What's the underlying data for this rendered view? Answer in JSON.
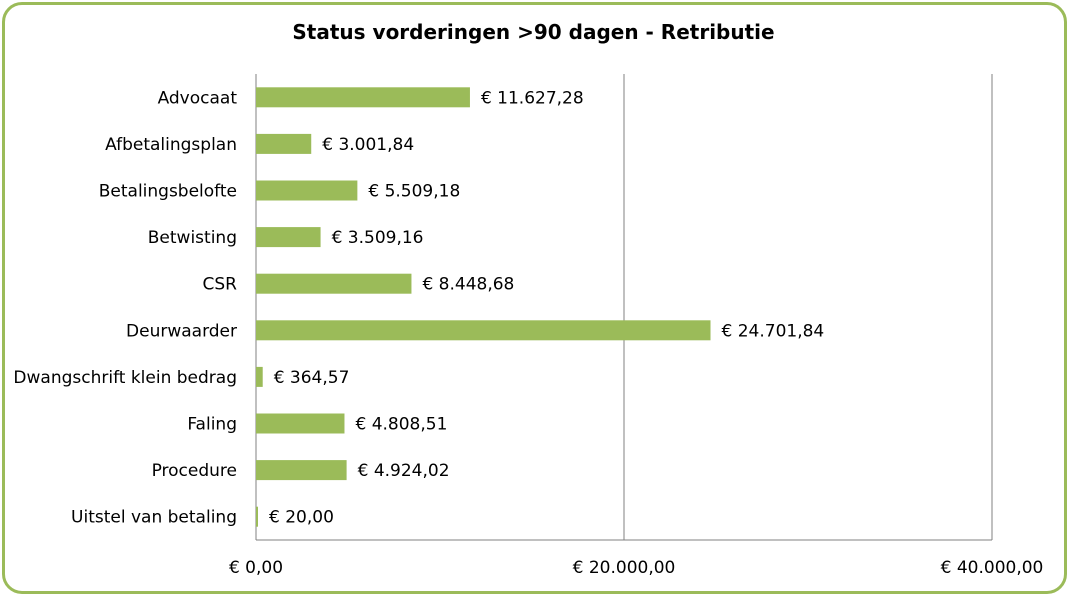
{
  "chart_data": {
    "type": "bar",
    "orientation": "horizontal",
    "title": "Status vorderingen >90 dagen - Retributie",
    "categories": [
      "Advocaat",
      "Afbetalingsplan",
      "Betalingsbelofte",
      "Betwisting",
      "CSR",
      "Deurwaarder",
      "Dwangschrift klein bedrag",
      "Faling",
      "Procedure",
      "Uitstel van betaling"
    ],
    "values": [
      11627.28,
      3001.84,
      5509.18,
      3509.16,
      8448.68,
      24701.84,
      364.57,
      4808.51,
      4924.02,
      20.0
    ],
    "value_labels": [
      "€ 11.627,28",
      "€ 3.001,84",
      "€ 5.509,18",
      "€ 3.509,16",
      "€ 8.448,68",
      "€ 24.701,84",
      "€ 364,57",
      "€ 4.808,51",
      "€ 4.924,02",
      "€ 20,00"
    ],
    "xlim": [
      0,
      40000
    ],
    "x_ticks": [
      0,
      20000,
      40000
    ],
    "x_tick_labels": [
      "€ 0,00",
      "€ 20.000,00",
      "€ 40.000,00"
    ],
    "grid": true,
    "bar_color": "#9bbb59",
    "border_color": "#9bbb59"
  }
}
